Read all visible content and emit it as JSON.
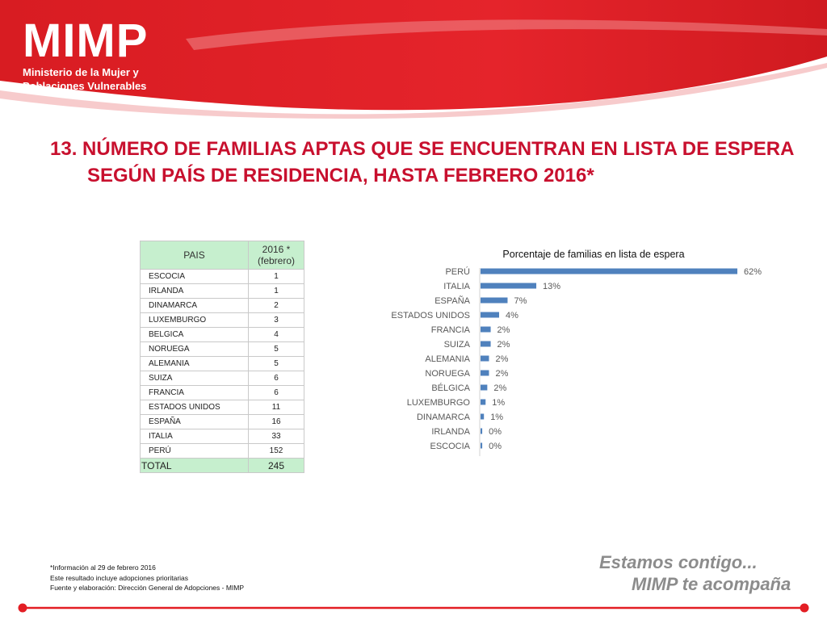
{
  "header": {
    "logo_text": "MIMP",
    "logo_sub_1": "Ministerio de la Mujer y",
    "logo_sub_2": "Poblaciones Vulnerables"
  },
  "title": {
    "line1": "13. NÚMERO DE FAMILIAS APTAS QUE SE ENCUENTRAN EN LISTA DE ESPERA",
    "line2": "SEGÚN PAÍS DE RESIDENCIA, HASTA FEBRERO 2016*"
  },
  "table": {
    "header_pais": "PAIS",
    "header_year_1": "2016 *",
    "header_year_2": "(febrero)",
    "rows": [
      {
        "pais": "ESCOCIA",
        "valor": "1"
      },
      {
        "pais": "IRLANDA",
        "valor": "1"
      },
      {
        "pais": "DINAMARCA",
        "valor": "2"
      },
      {
        "pais": "LUXEMBURGO",
        "valor": "3"
      },
      {
        "pais": "BELGICA",
        "valor": "4"
      },
      {
        "pais": "NORUEGA",
        "valor": "5"
      },
      {
        "pais": "ALEMANIA",
        "valor": "5"
      },
      {
        "pais": "SUIZA",
        "valor": "6"
      },
      {
        "pais": "FRANCIA",
        "valor": "6"
      },
      {
        "pais": "ESTADOS UNIDOS",
        "valor": "11"
      },
      {
        "pais": "ESPAÑA",
        "valor": "16"
      },
      {
        "pais": "ITALIA",
        "valor": "33"
      },
      {
        "pais": "PERÚ",
        "valor": "152"
      }
    ],
    "total_label": "TOTAL",
    "total_value": "245"
  },
  "chart_data": {
    "type": "bar",
    "orientation": "horizontal",
    "title": "Porcentaje de familias en lista de espera",
    "categories": [
      "PERÚ",
      "ITALIA",
      "ESPAÑA",
      "ESTADOS UNIDOS",
      "FRANCIA",
      "SUIZA",
      "ALEMANIA",
      "NORUEGA",
      "BÉLGICA",
      "LUXEMBURGO",
      "DINAMARCA",
      "IRLANDA",
      "ESCOCIA"
    ],
    "values": [
      62,
      13,
      7,
      4,
      2,
      2,
      2,
      2,
      2,
      1,
      1,
      0,
      0
    ],
    "value_labels": [
      "62%",
      "13%",
      "7%",
      "4%",
      "2%",
      "2%",
      "2%",
      "2%",
      "2%",
      "1%",
      "1%",
      "0%",
      "0%"
    ],
    "precise_values": [
      62.04,
      13.47,
      6.53,
      4.49,
      2.45,
      2.45,
      2.04,
      2.04,
      1.63,
      1.22,
      0.82,
      0.41,
      0.41
    ],
    "xlim": [
      0,
      62.04
    ],
    "color": "#4f81bd",
    "grid": false,
    "legend": "none"
  },
  "footnote": {
    "line1": "*Información al 29 de febrero 2016",
    "line2": "Este resultado incluye adopciones prioritarias",
    "line3": "Fuente y elaboración: Dirección General de Adopciones - MIMP"
  },
  "slogan": {
    "line1": "Estamos contigo...",
    "line2": "MIMP te acompaña"
  },
  "colors": {
    "brand_red": "#e31e24",
    "title_red": "#c8102e",
    "table_header_green": "#c6efce",
    "bar_blue": "#4f81bd"
  }
}
